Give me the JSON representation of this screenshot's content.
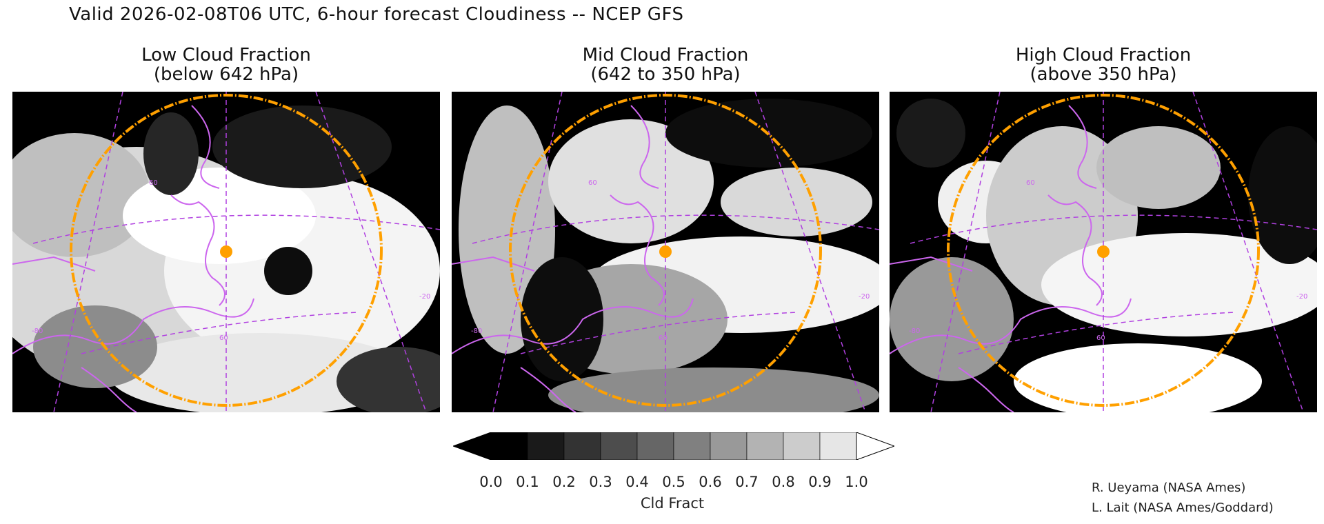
{
  "title": "Valid 2026-02-08T06 UTC, 6-hour forecast Cloudiness -- NCEP GFS",
  "panels": [
    {
      "line1": "Low Cloud Fraction",
      "line2": "(below 642 hPa)",
      "graticule_labels": [
        "60",
        "-80",
        "60",
        "-20"
      ]
    },
    {
      "line1": "Mid Cloud Fraction",
      "line2": "(642 to 350 hPa)",
      "graticule_labels": [
        "60",
        "-80",
        "60",
        "-20"
      ]
    },
    {
      "line1": "High Cloud Fraction",
      "line2": "(above 350 hPa)",
      "graticule_labels": [
        "60",
        "-80",
        "60",
        "-20"
      ]
    }
  ],
  "colorbar": {
    "ticks": [
      "0.0",
      "0.1",
      "0.2",
      "0.3",
      "0.4",
      "0.5",
      "0.6",
      "0.7",
      "0.8",
      "0.9",
      "1.0"
    ],
    "label": "Cld Fract",
    "colors": [
      "#000000",
      "#1a1a1a",
      "#333333",
      "#4d4d4d",
      "#666666",
      "#808080",
      "#999999",
      "#b3b3b3",
      "#cccccc",
      "#e6e6e6"
    ],
    "under_color": "#000000",
    "over_color": "#ffffff"
  },
  "credits": [
    "R. Ueyama (NASA Ames)",
    "L. Lait (NASA Ames/Goddard)"
  ],
  "colors": {
    "coast": "#cc66ee",
    "marker": "#ffa000"
  }
}
